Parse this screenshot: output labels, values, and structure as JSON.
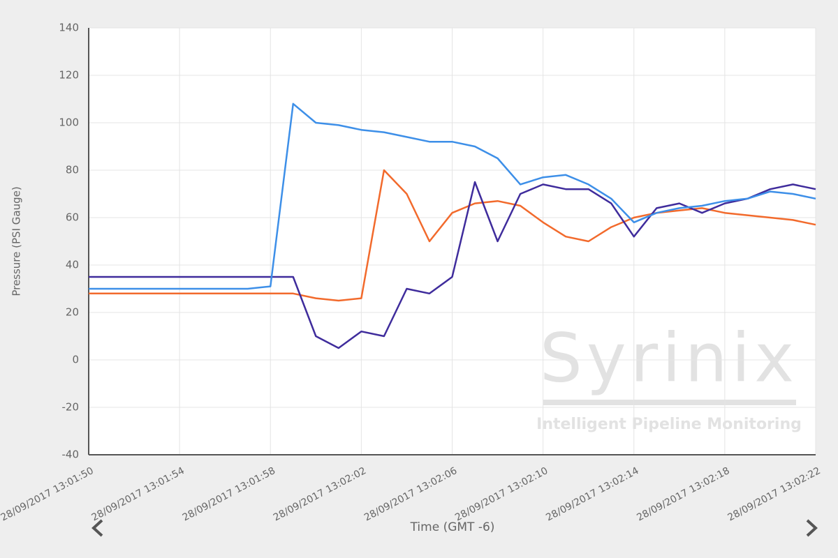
{
  "chart_data": {
    "type": "line",
    "y_label": "Pressure (PSI Gauge)",
    "x_label": "Time (GMT -6)",
    "watermark": "Syrinix",
    "watermark_subtitle": "Intelligent Pipeline Monitoring",
    "x": [
      "28/09/2017 13:01:50",
      "28/09/2017 13:01:51",
      "28/09/2017 13:01:52",
      "28/09/2017 13:01:53",
      "28/09/2017 13:01:54",
      "28/09/2017 13:01:55",
      "28/09/2017 13:01:56",
      "28/09/2017 13:01:57",
      "28/09/2017 13:01:58",
      "28/09/2017 13:01:59",
      "28/09/2017 13:02:00",
      "28/09/2017 13:02:01",
      "28/09/2017 13:02:02",
      "28/09/2017 13:02:03",
      "28/09/2017 13:02:04",
      "28/09/2017 13:02:05",
      "28/09/2017 13:02:06",
      "28/09/2017 13:02:07",
      "28/09/2017 13:02:08",
      "28/09/2017 13:02:09",
      "28/09/2017 13:02:10",
      "28/09/2017 13:02:11",
      "28/09/2017 13:02:12",
      "28/09/2017 13:02:13",
      "28/09/2017 13:02:14",
      "28/09/2017 13:02:15",
      "28/09/2017 13:02:16",
      "28/09/2017 13:02:17",
      "28/09/2017 13:02:18",
      "28/09/2017 13:02:19",
      "28/09/2017 13:02:20",
      "28/09/2017 13:02:21",
      "28/09/2017 13:02:22"
    ],
    "series": [
      {
        "color": "#f26a2c",
        "values": [
          28,
          28,
          28,
          28,
          28,
          28,
          28,
          28,
          28,
          28,
          26,
          25,
          26,
          80,
          70,
          50,
          62,
          66,
          67,
          65,
          58,
          52,
          50,
          56,
          60,
          62,
          63,
          64,
          62,
          61,
          60,
          59,
          57
        ]
      },
      {
        "color": "#3f2c9c",
        "values": [
          35,
          35,
          35,
          35,
          35,
          35,
          35,
          35,
          35,
          35,
          10,
          5,
          12,
          10,
          30,
          28,
          35,
          75,
          50,
          70,
          74,
          72,
          72,
          66,
          52,
          64,
          66,
          62,
          66,
          68,
          72,
          74,
          72
        ]
      },
      {
        "color": "#3d8fe8",
        "values": [
          30,
          30,
          30,
          30,
          30,
          30,
          30,
          30,
          31,
          108,
          100,
          99,
          97,
          96,
          94,
          92,
          92,
          90,
          85,
          74,
          77,
          78,
          74,
          68,
          58,
          62,
          64,
          65,
          67,
          68,
          71,
          70,
          68
        ]
      }
    ],
    "xlim": [
      "28/09/2017 13:01:50",
      "28/09/2017 13:02:22"
    ],
    "xticks": [
      "28/09/2017 13:01:50",
      "28/09/2017 13:01:54",
      "28/09/2017 13:01:58",
      "28/09/2017 13:02:02",
      "28/09/2017 13:02:06",
      "28/09/2017 13:02:10",
      "28/09/2017 13:02:14",
      "28/09/2017 13:02:18",
      "28/09/2017 13:02:22"
    ],
    "ylim": [
      -40,
      140
    ],
    "yticks": [
      -40,
      -20,
      0,
      20,
      40,
      60,
      80,
      100,
      120,
      140
    ],
    "grid": true
  }
}
